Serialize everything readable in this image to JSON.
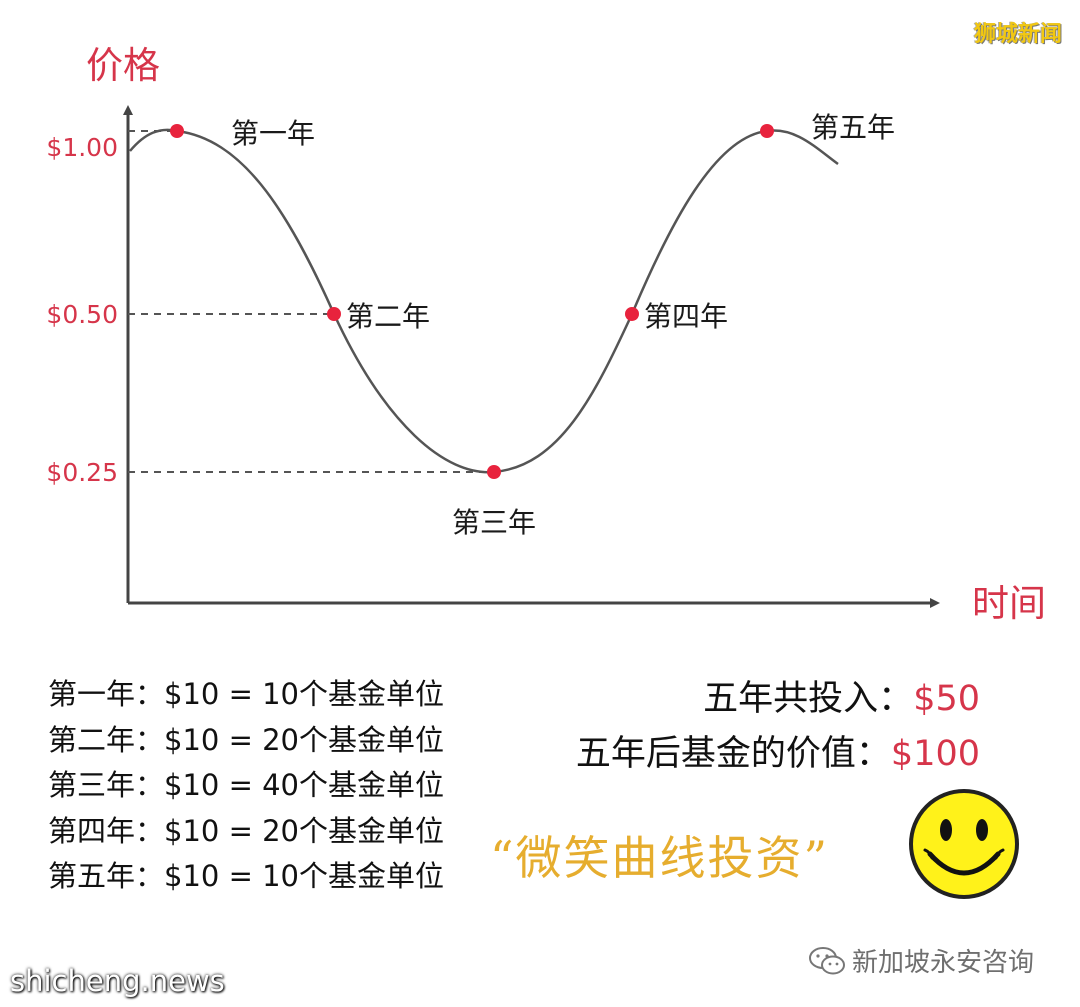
{
  "watermark_top": "狮城新闻",
  "chart_data": {
    "type": "line",
    "xlabel": "时间",
    "ylabel": "价格",
    "yticks": [
      {
        "label": "$1.00",
        "value": 1.0
      },
      {
        "label": "$0.50",
        "value": 0.5
      },
      {
        "label": "$0.25",
        "value": 0.25
      }
    ],
    "points": [
      {
        "label": "第一年",
        "price": 1.0
      },
      {
        "label": "第二年",
        "price": 0.5
      },
      {
        "label": "第三年",
        "price": 0.25
      },
      {
        "label": "第四年",
        "price": 0.5
      },
      {
        "label": "第五年",
        "price": 1.0
      }
    ],
    "grid": false,
    "colors": {
      "line": "#555555",
      "point": "#e8233d",
      "axis_text": "#d6354a"
    }
  },
  "year_list": [
    "第一年：$10 = 10个基金单位",
    "第二年：$10 = 20个基金单位",
    "第三年：$10 = 40个基金单位",
    "第四年：$10 = 20个基金单位",
    "第五年：$10 = 10个基金单位"
  ],
  "summary": {
    "total_label": "五年共投入：",
    "total_value": "$50",
    "after_label": "五年后基金的价值：",
    "after_value": "$100"
  },
  "smile_title": "“微笑曲线投资”",
  "source": {
    "icon": "wechat-icon",
    "name": "新加坡永安咨询"
  },
  "site": "shicheng.news"
}
